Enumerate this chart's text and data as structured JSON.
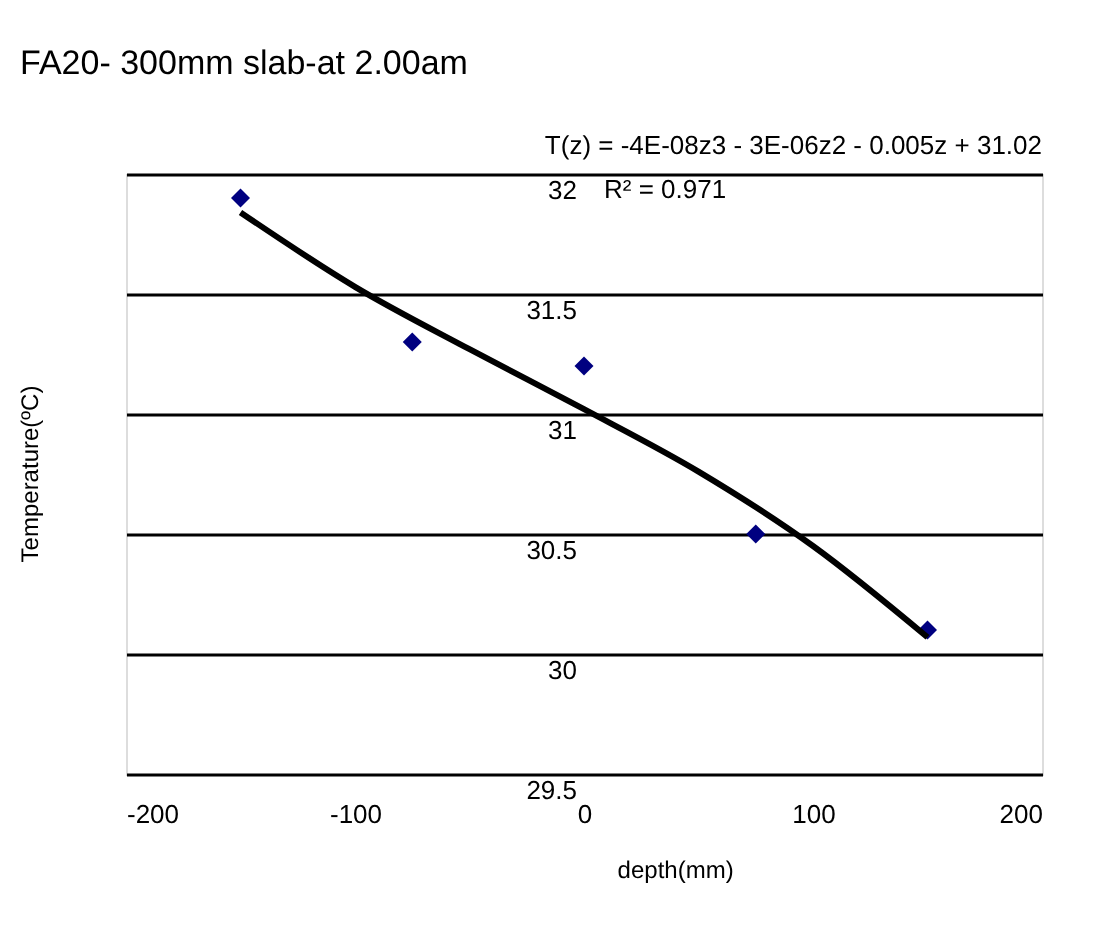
{
  "chart_data": {
    "type": "scatter",
    "title": "FA20- 300mm slab-at 2.00am",
    "xlabel": "depth(mm)",
    "ylabel": "Temperature(ºC)",
    "annotations": [
      "T(z) = -4E-08z3 - 3E-06z2 - 0.005z + 31.02",
      "R² = 0.971"
    ],
    "xlim": [
      -200,
      200
    ],
    "xticks": [
      -200,
      -100,
      0,
      100,
      200
    ],
    "ylim": [
      29.5,
      32
    ],
    "yticks": [
      29.5,
      30,
      30.5,
      31,
      31.5,
      32
    ],
    "grid": "y",
    "series": [
      {
        "marker": "diamond",
        "color": "#000080",
        "x": [
          -150,
          -75,
          0,
          75,
          150
        ],
        "values": [
          31.9,
          31.3,
          31.2,
          30.5,
          30.1
        ]
      },
      {
        "type": "line",
        "color": "#000000",
        "x": [
          -150,
          -100,
          -50,
          0,
          50,
          100,
          150
        ],
        "values": [
          31.84,
          31.53,
          31.27,
          31.02,
          30.76,
          30.45,
          30.07
        ]
      }
    ]
  }
}
